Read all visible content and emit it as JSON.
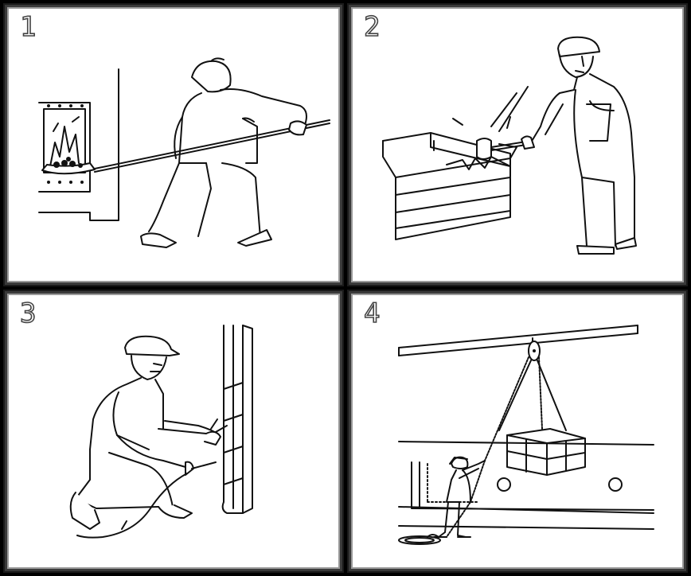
{
  "panels": [
    {
      "number": "1"
    },
    {
      "number": "2"
    },
    {
      "number": "3"
    },
    {
      "number": "4"
    }
  ],
  "colors": {
    "ink": "#111111",
    "paper": "#ffffff",
    "frame": "#000000"
  }
}
